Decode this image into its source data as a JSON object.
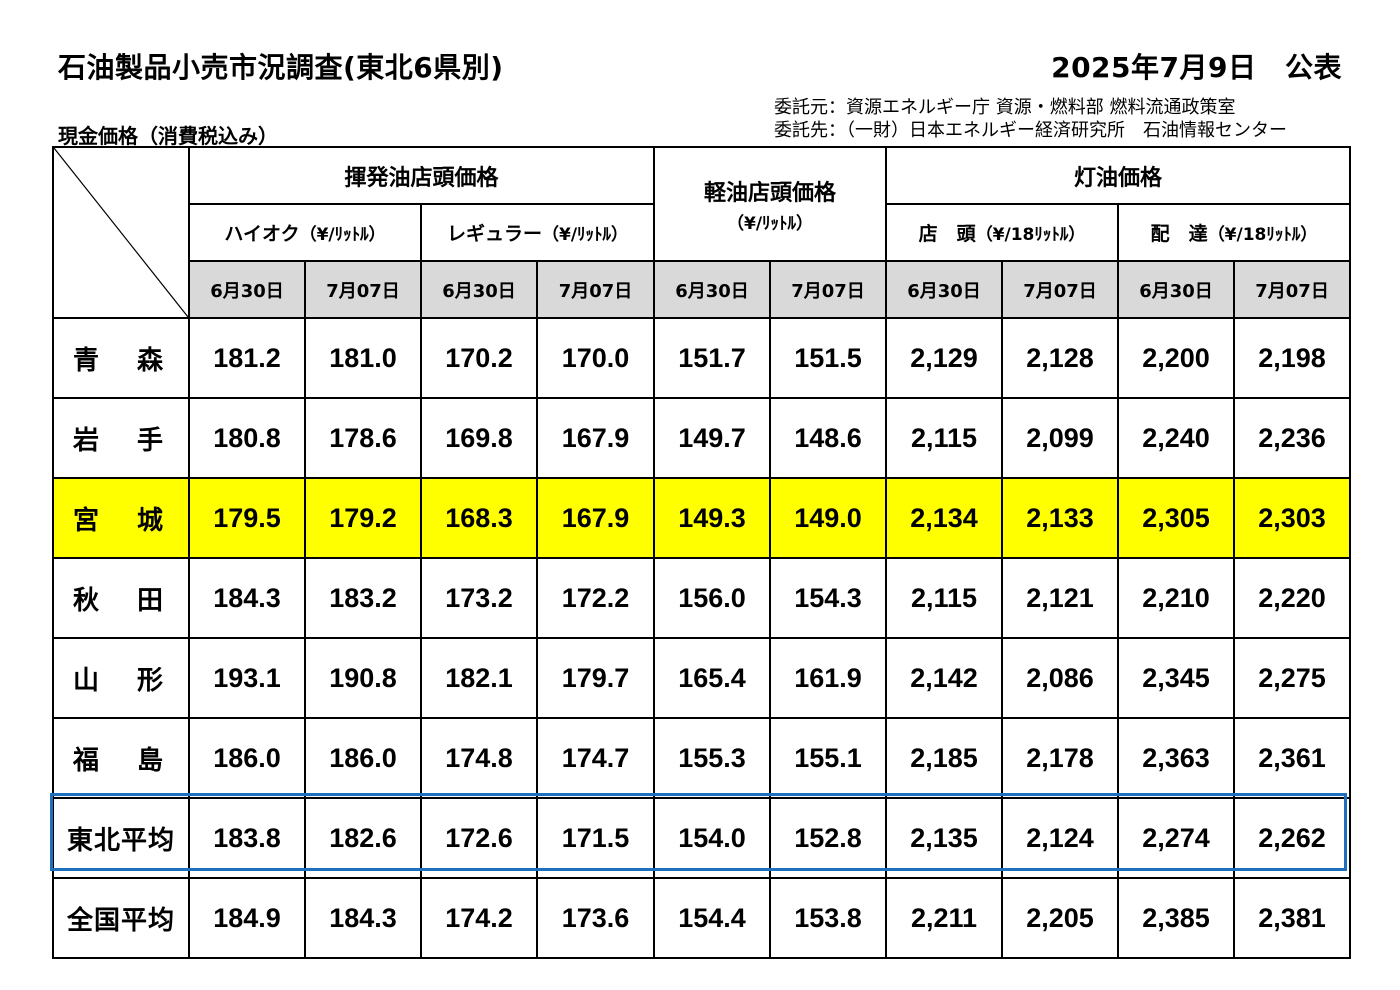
{
  "title": "石油製品小売市況調査(東北6県別)",
  "date": "2025年7月9日　公表",
  "commission": {
    "source": "委託元：資源エネルギー庁 資源・燃料部 燃料流通政策室",
    "contractor": "委託先：（一財）日本エネルギー経済研究所　石油情報センター"
  },
  "subtitle": "現金価格（消費税込み）",
  "headers": {
    "gasoline": "揮発油店頭価格",
    "high_octane": "ハイオク",
    "high_octane_unit": "（¥/ﾘｯﾄﾙ）",
    "regular": "レギュラー",
    "regular_unit": "（¥/ﾘｯﾄﾙ）",
    "diesel": "軽油店頭価格",
    "diesel_unit": "（¥/ﾘｯﾄﾙ）",
    "kerosene": "灯油価格",
    "store": "店　頭",
    "store_unit": "（¥/18ﾘｯﾄﾙ）",
    "delivery": "配　達",
    "delivery_unit": "（¥/18ﾘｯﾄﾙ）",
    "dates": [
      "6月30日",
      "7月07日",
      "6月30日",
      "7月07日",
      "6月30日",
      "7月07日",
      "6月30日",
      "7月07日",
      "6月30日",
      "7月07日"
    ]
  },
  "rows": [
    {
      "label": "青　森",
      "values": [
        "181.2",
        "181.0",
        "170.2",
        "170.0",
        "151.7",
        "151.5",
        "2,129",
        "2,128",
        "2,200",
        "2,198"
      ]
    },
    {
      "label": "岩　手",
      "values": [
        "180.8",
        "178.6",
        "169.8",
        "167.9",
        "149.7",
        "148.6",
        "2,115",
        "2,099",
        "2,240",
        "2,236"
      ]
    },
    {
      "label": "宮　城",
      "values": [
        "179.5",
        "179.2",
        "168.3",
        "167.9",
        "149.3",
        "149.0",
        "2,134",
        "2,133",
        "2,305",
        "2,303"
      ]
    },
    {
      "label": "秋　田",
      "values": [
        "184.3",
        "183.2",
        "173.2",
        "172.2",
        "156.0",
        "154.3",
        "2,115",
        "2,121",
        "2,210",
        "2,220"
      ]
    },
    {
      "label": "山　形",
      "values": [
        "193.1",
        "190.8",
        "182.1",
        "179.7",
        "165.4",
        "161.9",
        "2,142",
        "2,086",
        "2,345",
        "2,275"
      ]
    },
    {
      "label": "福　島",
      "values": [
        "186.0",
        "186.0",
        "174.8",
        "174.7",
        "155.3",
        "155.1",
        "2,185",
        "2,178",
        "2,363",
        "2,361"
      ]
    },
    {
      "label": "東北平均",
      "values": [
        "183.8",
        "182.6",
        "172.6",
        "171.5",
        "154.0",
        "152.8",
        "2,135",
        "2,124",
        "2,274",
        "2,262"
      ]
    },
    {
      "label": "全国平均",
      "values": [
        "184.9",
        "184.3",
        "174.2",
        "173.6",
        "154.4",
        "153.8",
        "2,211",
        "2,205",
        "2,385",
        "2,381"
      ]
    }
  ],
  "colors": {
    "highlight_row": "#ffff00",
    "date_header_bg": "#d9d9d9",
    "average_frame": "#1f6fbf"
  }
}
